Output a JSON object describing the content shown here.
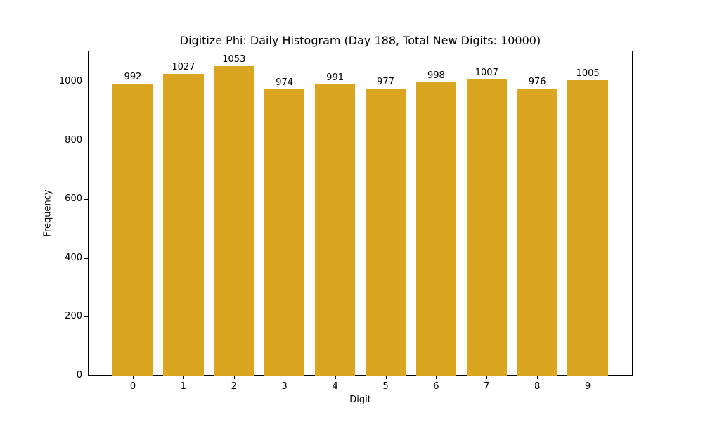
{
  "chart_data": {
    "type": "bar",
    "title": "Digitize Phi: Daily Histogram (Day 188, Total New Digits: 10000)",
    "xlabel": "Digit",
    "ylabel": "Frequency",
    "categories": [
      "0",
      "1",
      "2",
      "3",
      "4",
      "5",
      "6",
      "7",
      "8",
      "9"
    ],
    "values": [
      992,
      1027,
      1053,
      974,
      991,
      977,
      998,
      1007,
      976,
      1005
    ],
    "ylim": [
      0,
      1105
    ],
    "yticks": [
      0,
      200,
      400,
      600,
      800,
      1000
    ],
    "bar_color": "#DAA520",
    "grid": false,
    "legend": null
  }
}
